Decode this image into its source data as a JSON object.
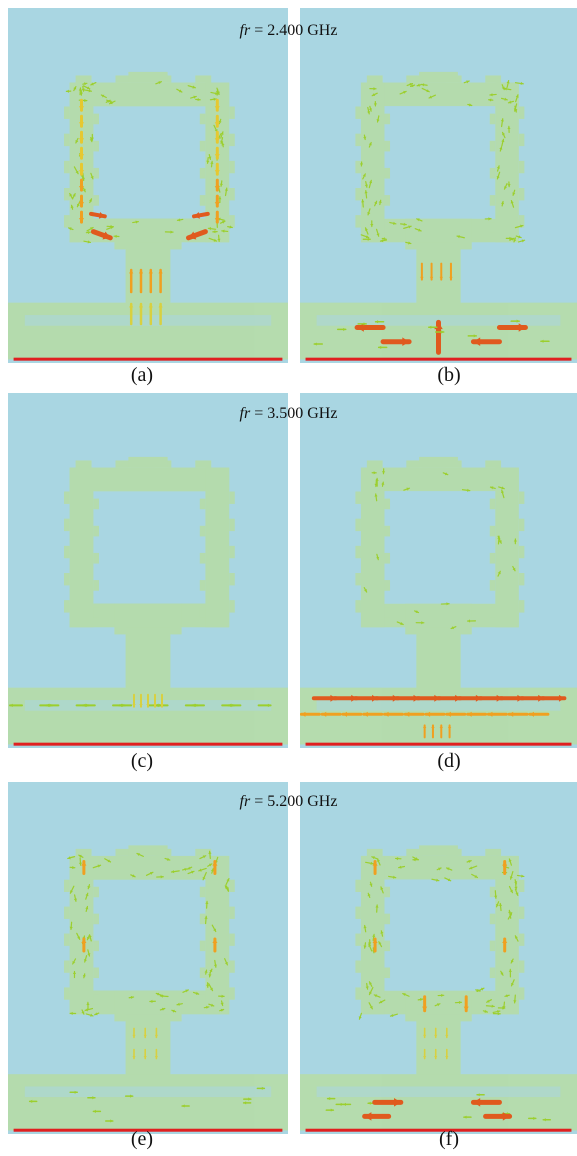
{
  "figure": {
    "rows": [
      {
        "frequency_prefix": "fr",
        "frequency_value": " = 2.400 GHz",
        "panels": [
          {
            "label": "(a)"
          },
          {
            "label": "(b)"
          }
        ]
      },
      {
        "frequency_prefix": "fr",
        "frequency_value": " = 3.500 GHz",
        "panels": [
          {
            "label": "(c)"
          },
          {
            "label": "(d)"
          }
        ]
      },
      {
        "frequency_prefix": "fr",
        "frequency_value": " = 5.200 GHz",
        "panels": [
          {
            "label": "(e)"
          },
          {
            "label": "(f)"
          }
        ]
      }
    ]
  },
  "colors": {
    "background": "#a9d6e2",
    "metal": "#b5dcab",
    "ground_line": "#e02020",
    "arrow_strong": "#e05a1e",
    "arrow_medium": "#f0a020",
    "arrow_weak": "#9ccf2e"
  }
}
